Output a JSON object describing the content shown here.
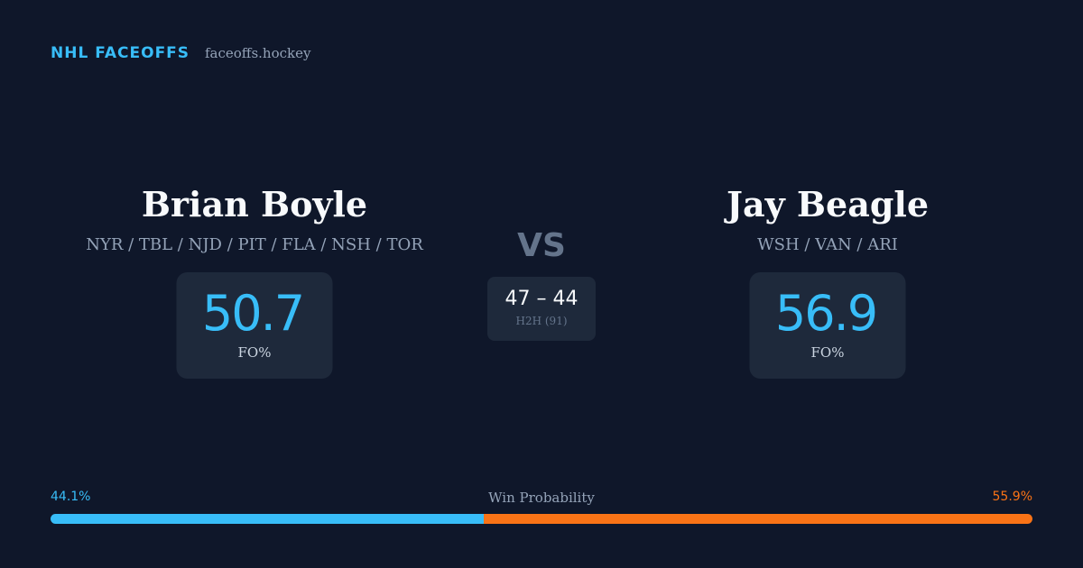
{
  "header": {
    "brand": "NHL FACEOFFS",
    "site": "faceoffs.hockey"
  },
  "players": [
    {
      "name": "Brian Boyle",
      "teams": "NYR / TBL / NJD / PIT / FLA / NSH / TOR",
      "fo_pct": 50.7,
      "fo_label": "FO%"
    },
    {
      "name": "Jay Beagle",
      "teams": "WSH / VAN / ARI",
      "fo_pct": 56.9,
      "fo_label": "FO%"
    }
  ],
  "versus": "VS",
  "h2h": {
    "score": "47 – 44",
    "label": "H2H (91)"
  },
  "win_probability": {
    "title": "Win Probability",
    "left": {
      "value": 44.1,
      "label": "44.1%",
      "color": "#38bdf8"
    },
    "right": {
      "value": 55.9,
      "label": "55.9%",
      "color": "#f97316"
    }
  }
}
